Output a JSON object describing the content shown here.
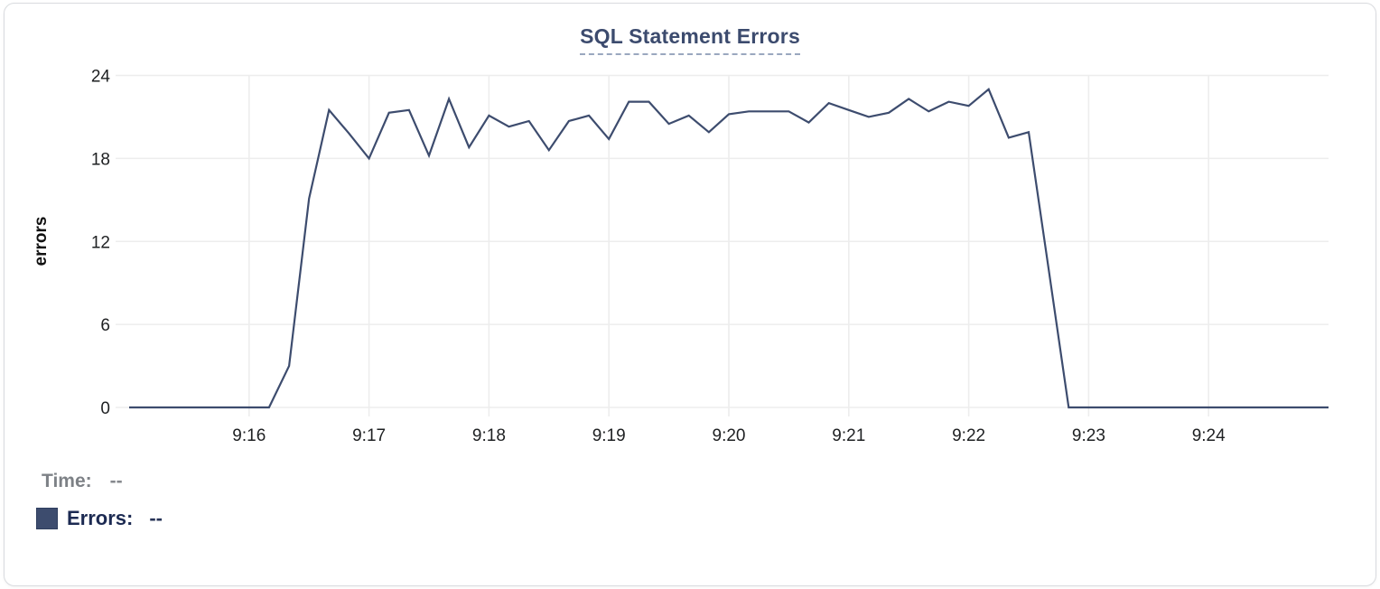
{
  "card": {
    "title": "SQL Statement Errors"
  },
  "tooltip": {
    "time_label": "Time:",
    "time_value": "--",
    "errors_label": "Errors:",
    "errors_value": "--"
  },
  "colors": {
    "line": "#3d4c6e",
    "title": "#3c4b6e",
    "title_underline": "#9aa7bf",
    "grid": "#ededed",
    "tick_text": "#1e2022",
    "time_label_text": "#7d8186",
    "errors_label_text": "#1c2a52",
    "card_border": "#d9dbdf"
  },
  "chart_data": {
    "type": "line",
    "title": "SQL Statement Errors",
    "xlabel": "",
    "ylabel": "errors",
    "ylim": [
      0,
      24
    ],
    "y_ticks": [
      0,
      6,
      12,
      18,
      24
    ],
    "x_range": [
      "9:15:00",
      "9:25:00"
    ],
    "x_ticks": [
      "9:16",
      "9:17",
      "9:18",
      "9:19",
      "9:20",
      "9:21",
      "9:22",
      "9:23",
      "9:24"
    ],
    "grid": true,
    "legend_position": "bottom-left",
    "series": [
      {
        "name": "Errors",
        "color": "#3d4c6e",
        "points": [
          [
            "9:15:00",
            0
          ],
          [
            "9:15:10",
            0
          ],
          [
            "9:15:20",
            0
          ],
          [
            "9:15:30",
            0
          ],
          [
            "9:15:40",
            0
          ],
          [
            "9:15:50",
            0
          ],
          [
            "9:16:00",
            0
          ],
          [
            "9:16:10",
            0
          ],
          [
            "9:16:20",
            3
          ],
          [
            "9:16:30",
            15.1
          ],
          [
            "9:16:40",
            21.5
          ],
          [
            "9:16:50",
            19.8
          ],
          [
            "9:17:00",
            18
          ],
          [
            "9:17:10",
            21.3
          ],
          [
            "9:17:20",
            21.5
          ],
          [
            "9:17:30",
            18.2
          ],
          [
            "9:17:40",
            22.3
          ],
          [
            "9:17:50",
            18.8
          ],
          [
            "9:18:00",
            21.1
          ],
          [
            "9:18:10",
            20.3
          ],
          [
            "9:18:20",
            20.7
          ],
          [
            "9:18:30",
            18.6
          ],
          [
            "9:18:40",
            20.7
          ],
          [
            "9:18:50",
            21.1
          ],
          [
            "9:19:00",
            19.4
          ],
          [
            "9:19:10",
            22.1
          ],
          [
            "9:19:20",
            22.1
          ],
          [
            "9:19:30",
            20.5
          ],
          [
            "9:19:40",
            21.1
          ],
          [
            "9:19:50",
            19.9
          ],
          [
            "9:20:00",
            21.2
          ],
          [
            "9:20:10",
            21.4
          ],
          [
            "9:20:20",
            21.4
          ],
          [
            "9:20:30",
            21.4
          ],
          [
            "9:20:40",
            20.6
          ],
          [
            "9:20:50",
            22
          ],
          [
            "9:21:00",
            21.5
          ],
          [
            "9:21:10",
            21
          ],
          [
            "9:21:20",
            21.3
          ],
          [
            "9:21:30",
            22.3
          ],
          [
            "9:21:40",
            21.4
          ],
          [
            "9:21:50",
            22.1
          ],
          [
            "9:22:00",
            21.8
          ],
          [
            "9:22:10",
            23
          ],
          [
            "9:22:20",
            19.5
          ],
          [
            "9:22:30",
            19.9
          ],
          [
            "9:22:40",
            10
          ],
          [
            "9:22:50",
            0
          ],
          [
            "9:23:00",
            0
          ],
          [
            "9:23:10",
            0
          ],
          [
            "9:23:20",
            0
          ],
          [
            "9:23:30",
            0
          ],
          [
            "9:23:40",
            0
          ],
          [
            "9:23:50",
            0
          ],
          [
            "9:24:00",
            0
          ],
          [
            "9:24:10",
            0
          ],
          [
            "9:24:20",
            0
          ],
          [
            "9:24:30",
            0
          ],
          [
            "9:24:40",
            0
          ],
          [
            "9:24:50",
            0
          ],
          [
            "9:25:00",
            0
          ]
        ]
      }
    ]
  }
}
